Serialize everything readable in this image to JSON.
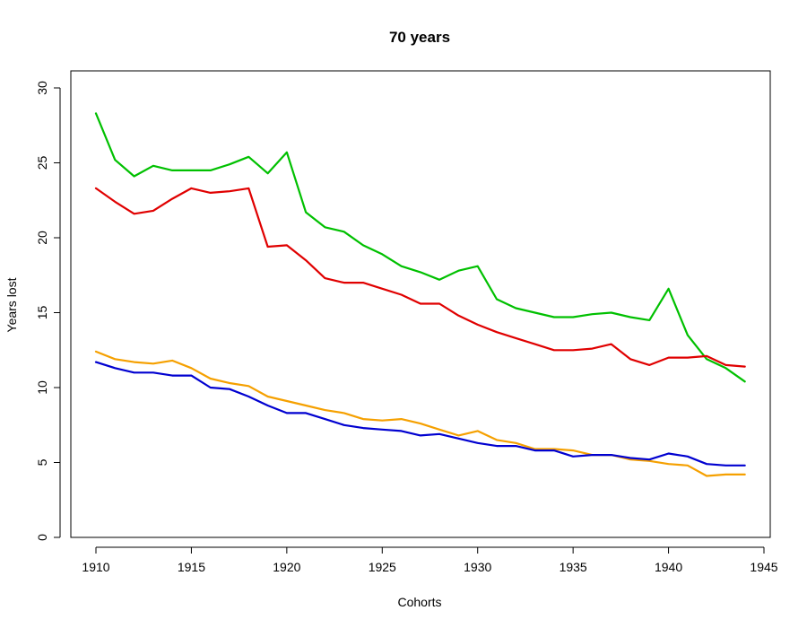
{
  "chart_data": {
    "type": "line",
    "title": "70 years",
    "xlabel": "Cohorts",
    "ylabel": "Years lost",
    "xlim": [
      1910,
      1944
    ],
    "ylim": [
      0,
      30
    ],
    "x_ticks": [
      "1910",
      "1915",
      "1920",
      "1925",
      "1930",
      "1935",
      "1940",
      "1945"
    ],
    "y_ticks": [
      "0",
      "5",
      "10",
      "15",
      "20",
      "25",
      "30"
    ],
    "grid": false,
    "legend": "none",
    "x": [
      1910,
      1911,
      1912,
      1913,
      1914,
      1915,
      1916,
      1917,
      1918,
      1919,
      1920,
      1921,
      1922,
      1923,
      1924,
      1925,
      1926,
      1927,
      1928,
      1929,
      1930,
      1931,
      1932,
      1933,
      1934,
      1935,
      1936,
      1937,
      1938,
      1939,
      1940,
      1941,
      1942,
      1943,
      1944
    ],
    "series": [
      {
        "color": "#00c000",
        "values": [
          28.3,
          25.2,
          24.1,
          24.8,
          24.5,
          24.5,
          24.5,
          24.9,
          25.4,
          24.3,
          25.7,
          21.7,
          20.7,
          20.4,
          19.5,
          18.9,
          18.1,
          17.7,
          17.2,
          17.8,
          18.1,
          15.9,
          15.3,
          15.0,
          14.7,
          14.7,
          14.9,
          15.0,
          14.7,
          14.5,
          16.6,
          13.5,
          11.9,
          11.3,
          10.4
        ]
      },
      {
        "color": "#e00000",
        "values": [
          23.3,
          22.4,
          21.6,
          21.8,
          22.6,
          23.3,
          23.0,
          23.1,
          23.3,
          19.4,
          19.5,
          18.5,
          17.3,
          17.0,
          17.0,
          16.6,
          16.2,
          15.6,
          15.6,
          14.8,
          14.2,
          13.7,
          13.3,
          12.9,
          12.5,
          12.5,
          12.6,
          12.9,
          11.9,
          11.5,
          12.0,
          12.0,
          12.1,
          11.5,
          11.4
        ]
      },
      {
        "color": "#f5a000",
        "values": [
          12.4,
          11.9,
          11.7,
          11.6,
          11.8,
          11.3,
          10.6,
          10.3,
          10.1,
          9.4,
          9.1,
          8.8,
          8.5,
          8.3,
          7.9,
          7.8,
          7.9,
          7.6,
          7.2,
          6.8,
          7.1,
          6.5,
          6.3,
          5.9,
          5.9,
          5.8,
          5.5,
          5.5,
          5.2,
          5.1,
          4.9,
          4.8,
          4.1,
          4.2,
          4.2
        ]
      },
      {
        "color": "#0000d0",
        "values": [
          11.7,
          11.3,
          11.0,
          11.0,
          10.8,
          10.8,
          10.0,
          9.9,
          9.4,
          8.8,
          8.3,
          8.3,
          7.9,
          7.5,
          7.3,
          7.2,
          7.1,
          6.8,
          6.9,
          6.6,
          6.3,
          6.1,
          6.1,
          5.8,
          5.8,
          5.4,
          5.5,
          5.5,
          5.3,
          5.2,
          5.6,
          5.4,
          4.9,
          4.8,
          4.8
        ]
      }
    ]
  }
}
